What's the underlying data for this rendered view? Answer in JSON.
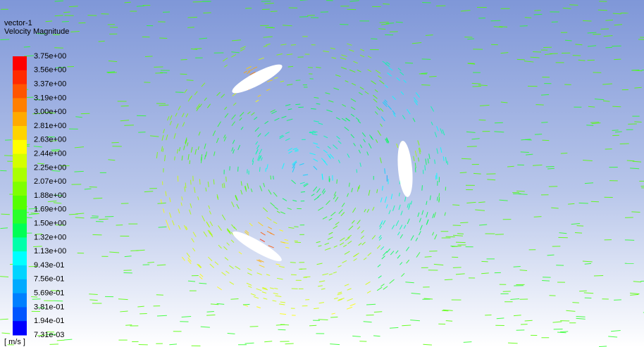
{
  "header": {
    "title": "vector-1",
    "subtitle": "Velocity Magnitude"
  },
  "legend": {
    "labels": [
      "3.75e+00",
      "3.56e+00",
      "3.37e+00",
      "3.19e+00",
      "3.00e+00",
      "2.81e+00",
      "2.63e+00",
      "2.44e+00",
      "2.25e+00",
      "2.07e+00",
      "1.88e+00",
      "1.69e+00",
      "1.50e+00",
      "1.32e+00",
      "1.13e+00",
      "9.43e-01",
      "7.56e-01",
      "5.69e-01",
      "3.81e-01",
      "1.94e-01",
      "7.31e-03"
    ],
    "colors": [
      "#ff0000",
      "#ff2a00",
      "#ff5500",
      "#ff7f00",
      "#ffaa00",
      "#ffd400",
      "#ffff00",
      "#d4ff00",
      "#aaff00",
      "#7fff00",
      "#55ff00",
      "#2aff2a",
      "#00ff55",
      "#00ffaa",
      "#00ffff",
      "#00d4ff",
      "#00aaff",
      "#007fff",
      "#0055ff",
      "#0000ff"
    ],
    "unit": "[ m/s ]"
  }
}
